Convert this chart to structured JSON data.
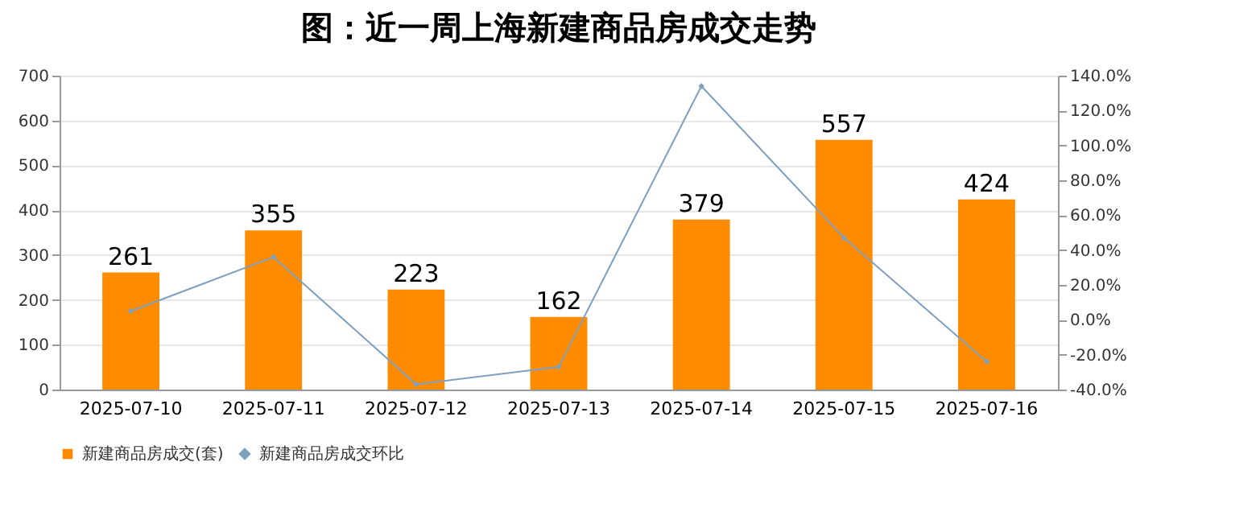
{
  "chart_data": {
    "type": "bar",
    "title": "图：近一周上海新建商品房成交走势",
    "categories": [
      "2025-07-10",
      "2025-07-11",
      "2025-07-12",
      "2025-07-13",
      "2025-07-14",
      "2025-07-15",
      "2025-07-16"
    ],
    "series": [
      {
        "name": "新建商品房成交(套)",
        "color": "#ff8c00",
        "values": [
          261,
          355,
          223,
          162,
          379,
          557,
          424
        ],
        "value_labels": [
          "261",
          "355",
          "223",
          "162",
          "379",
          "557",
          "424"
        ]
      },
      {
        "name": "新建商品房成交环比",
        "type": "line",
        "axis": "y2",
        "color": "#7f9fbf",
        "marker": "diamond",
        "values": [
          5,
          36,
          -37,
          -27,
          134,
          47,
          -24
        ]
      }
    ],
    "ylim": [
      0,
      700
    ],
    "yticks": [
      0,
      100,
      200,
      300,
      400,
      500,
      600,
      700
    ],
    "y2lim": [
      -40,
      140
    ],
    "y2ticks": [
      {
        "value": -40,
        "label": "-40.0%"
      },
      {
        "value": -20,
        "label": "-20.0%"
      },
      {
        "value": 0,
        "label": "0.0%"
      },
      {
        "value": 20,
        "label": "20.0%"
      },
      {
        "value": 40,
        "label": "40.0%"
      },
      {
        "value": 60,
        "label": "60.0%"
      },
      {
        "value": 80,
        "label": "80.0%"
      },
      {
        "value": 100,
        "label": "100.0%"
      },
      {
        "value": 120,
        "label": "120.0%"
      },
      {
        "value": 140,
        "label": "140.0%"
      }
    ],
    "grid": "y",
    "legend": "bottom"
  }
}
